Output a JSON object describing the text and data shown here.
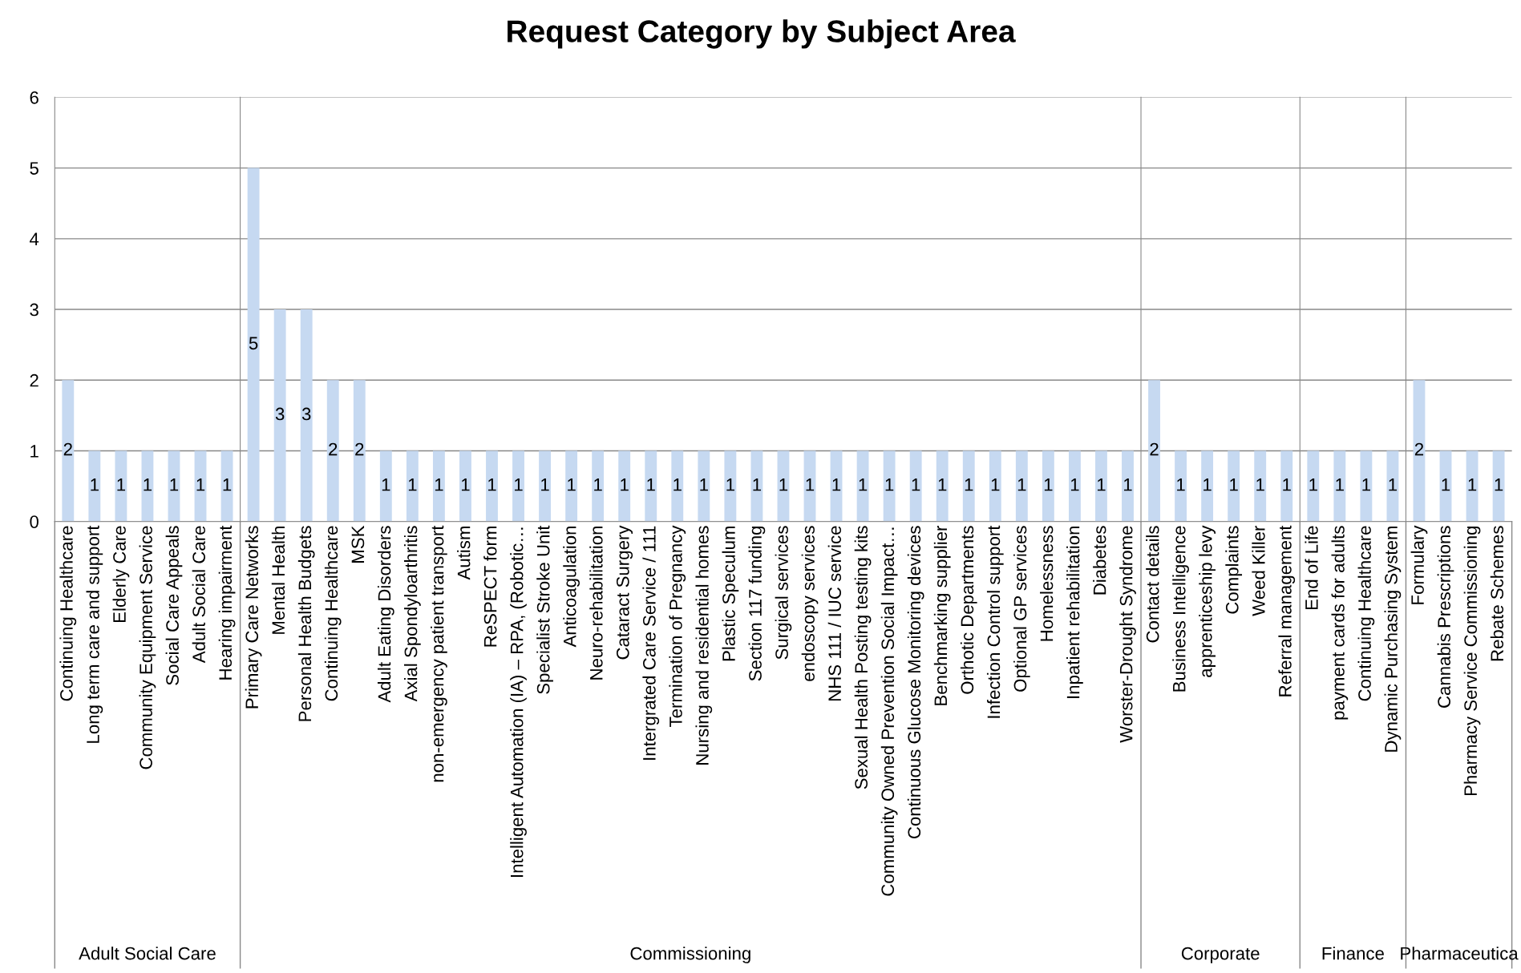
{
  "chart_data": [
    {
      "type": "bar",
      "xlabel": "Adult Social Care",
      "categories": [
        "Continuing Healthcare",
        "Long term care and support",
        "Elderly Care",
        "Community Equipment Service",
        "Social Care Appeals",
        "Adult Social Care",
        "Hearing impairment"
      ],
      "values": [
        2,
        1,
        1,
        1,
        1,
        1,
        1
      ],
      "color": "#c6d9f1",
      "ylim": [
        0,
        6
      ],
      "yticks": [
        0,
        1,
        2,
        3,
        4,
        5,
        6
      ],
      "grid": "y",
      "data_labels": true
    },
    {
      "type": "bar",
      "title": "Request Category by Subject Area",
      "xlabel": "Commissioning",
      "categories": [
        "Primary Care Networks",
        "Mental Health",
        "Personal Health Budgets",
        "Continuing Healthcare",
        "MSK",
        "Adult Eating Disorders",
        "Axial Spondyloarthritis",
        "non-emergency patient transport",
        "Autism",
        "ReSPECT form",
        "Intelligent Automation (IA) – RPA, (Robotic…",
        "Specialist Stroke Unit",
        "Anticoagulation",
        "Neuro-rehabilitation",
        "Cataract Surgery",
        "Intergrated Care Service / 111",
        "Termination of Pregnancy",
        "Nursing and residential homes",
        "Plastic Speculum",
        "Section 117 funding",
        "Surgical services",
        "endoscopy services",
        "NHS 111 / IUC service",
        "Sexual Health Posting testing kits",
        "Community Owned Prevention Social Impact…",
        "Continuous Glucose Monitoring devices",
        "Benchmarking supplier",
        "Orthotic Departments",
        "Infection Control support",
        "Optional GP services",
        "Homelessness",
        "Inpatient rehabilitation",
        "Diabetes",
        "Worster-Drought Syndrome"
      ],
      "values": [
        5,
        3,
        3,
        2,
        2,
        1,
        1,
        1,
        1,
        1,
        1,
        1,
        1,
        1,
        1,
        1,
        1,
        1,
        1,
        1,
        1,
        1,
        1,
        1,
        1,
        1,
        1,
        1,
        1,
        1,
        1,
        1,
        1,
        1
      ],
      "color": "#c6d9f1",
      "ylim": [
        0,
        6
      ],
      "yticks": [
        0,
        1,
        2,
        3,
        4,
        5,
        6
      ],
      "grid": "y",
      "data_labels": true,
      "tick_labels": "x"
    },
    {
      "type": "bar",
      "xlabel": "Corporate",
      "categories": [
        "Contact details",
        "Business Intelligence",
        "apprenticeship levy",
        "Complaints",
        "Weed Killer",
        "Referral management"
      ],
      "values": [
        2,
        1,
        1,
        1,
        1,
        1
      ],
      "color": "#c6d9f1",
      "ylim": [
        0,
        6
      ],
      "yticks": [
        0,
        1,
        2,
        3,
        4,
        5,
        6
      ],
      "grid": "y",
      "data_labels": true,
      "tick_labels": "x"
    },
    {
      "type": "bar",
      "xlabel": "Finance",
      "categories": [
        "End of Life",
        "payment cards for adults",
        "Continuing Healthcare",
        "Dynamic Purchasing System"
      ],
      "values": [
        1,
        1,
        1,
        1
      ],
      "color": "#c6d9f1",
      "ylim": [
        0,
        6
      ],
      "yticks": [
        0,
        1,
        2,
        3,
        4,
        5,
        6
      ],
      "grid": "y",
      "data_labels": true,
      "tick_labels": "x"
    },
    {
      "type": "bar",
      "xlabel": "Pharmaceutica",
      "categories": [
        "Formulary",
        "Cannabis Prescriptions",
        "Pharmacy Service Commissioning",
        "Rebate Schemes"
      ],
      "values": [
        2,
        1,
        1,
        1
      ],
      "color": "#c6d9f1",
      "ylim": [
        0,
        6
      ],
      "yticks": [
        0,
        1,
        2,
        3,
        4,
        5,
        6
      ],
      "grid": "y",
      "data_labels": true,
      "tick_labels": "x"
    }
  ]
}
